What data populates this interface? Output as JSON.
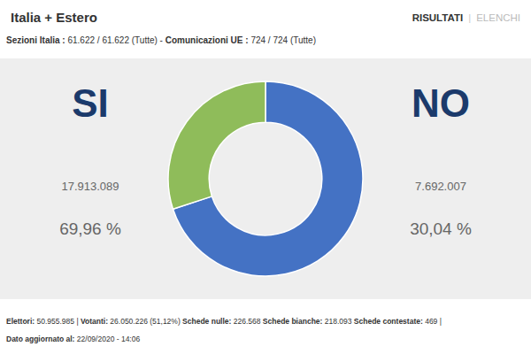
{
  "chart_data": {
    "type": "donut",
    "title": "Italia + Estero",
    "tabs": [
      "RISULTATI",
      "|",
      "ELENCHI"
    ],
    "subtitle": [
      "Sezioni Italia :",
      " 61.622 / 61.622 (Tutte)",
      " - ",
      "Comunicazioni UE :",
      " 724 / 724 (Tutte)"
    ],
    "categories": [
      "SI",
      "NO"
    ],
    "values": [
      69.96,
      30.04
    ],
    "value_labels": [
      "69,96 %",
      "30,04 %"
    ],
    "vote_labels": [
      "17.913.089",
      "7.692.007"
    ],
    "colors": [
      "#4472c4",
      "#8fbc5a"
    ],
    "footer": [
      [
        "Elettori:",
        " 50.955.985 | ",
        "Votanti:",
        " 26.050.226 (51,12%) ",
        "Schede nulle:",
        " 226.568 ",
        "Schede bianche:",
        " 218.093 ",
        "Schede contestate:",
        " 469 |"
      ],
      [
        "Dato aggiornato al:",
        " 22/09/2020 - 14:06"
      ]
    ]
  }
}
